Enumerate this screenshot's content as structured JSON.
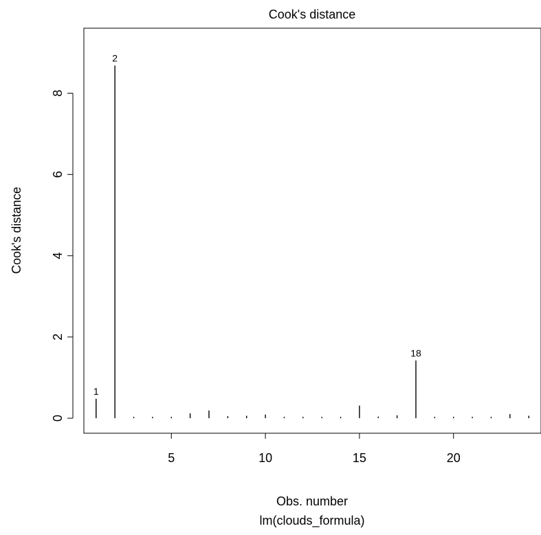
{
  "chart_data": {
    "type": "bar",
    "title": "Cook's distance",
    "xlabel": "Obs. number",
    "subtitle": "lm(clouds_formula)",
    "ylabel": "Cook's distance",
    "xlim": [
      0.35,
      24.65
    ],
    "ylim": [
      -0.37,
      9.6
    ],
    "xticks": [
      5,
      10,
      15,
      20
    ],
    "yticks": [
      0,
      2,
      4,
      6,
      8
    ],
    "x": [
      1,
      2,
      3,
      4,
      5,
      6,
      7,
      8,
      9,
      10,
      11,
      12,
      13,
      14,
      15,
      16,
      17,
      18,
      19,
      20,
      21,
      22,
      23,
      24
    ],
    "values": [
      0.48,
      8.68,
      0.01,
      0.02,
      0.01,
      0.12,
      0.19,
      0.05,
      0.06,
      0.09,
      0.03,
      0.02,
      0.01,
      0.01,
      0.31,
      0.04,
      0.07,
      1.42,
      0.01,
      0.01,
      0.02,
      0.03,
      0.1,
      0.06
    ],
    "point_labels": [
      {
        "x": 1,
        "label": "1"
      },
      {
        "x": 2,
        "label": "2"
      },
      {
        "x": 18,
        "label": "18"
      }
    ],
    "grid": false,
    "legend": "none"
  }
}
